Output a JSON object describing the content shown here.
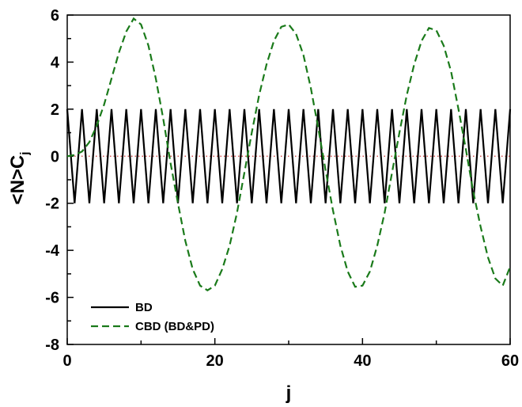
{
  "chart_data": {
    "type": "line",
    "xlabel": "j",
    "ylabel": {
      "main": "<N>C",
      "sub": "j"
    },
    "xlim": [
      0,
      60
    ],
    "ylim": [
      -8,
      6
    ],
    "xticks": [
      0,
      20,
      40,
      60
    ],
    "yticks": [
      -8,
      -6,
      -4,
      -2,
      0,
      2,
      4,
      6
    ],
    "grid": false,
    "legend_position": "bottom-left",
    "reference_line": {
      "y": 0,
      "color": "#cc3333",
      "style": "dotted"
    },
    "series": [
      {
        "name": "BD",
        "color": "#000000",
        "style": "solid",
        "x": [
          0,
          1,
          2,
          3,
          4,
          5,
          6,
          7,
          8,
          9,
          10,
          11,
          12,
          13,
          14,
          15,
          16,
          17,
          18,
          19,
          20,
          21,
          22,
          23,
          24,
          25,
          26,
          27,
          28,
          29,
          30,
          31,
          32,
          33,
          34,
          35,
          36,
          37,
          38,
          39,
          40,
          41,
          42,
          43,
          44,
          45,
          46,
          47,
          48,
          49,
          50,
          51,
          52,
          53,
          54,
          55,
          56,
          57,
          58,
          59,
          60
        ],
        "y": [
          2,
          -2,
          2,
          -2,
          2,
          -2,
          2,
          -2,
          2,
          -2,
          2,
          -2,
          2,
          -2,
          2,
          -2,
          2,
          -2,
          2,
          -2,
          2,
          -2,
          2,
          -2,
          2,
          -2,
          2,
          -2,
          2,
          -2,
          2,
          -2,
          2,
          -2,
          2,
          -2,
          2,
          -2,
          2,
          -2,
          2,
          -2,
          2,
          -2,
          2,
          -2,
          2,
          -2,
          2,
          -2,
          2,
          -2,
          2,
          -2,
          2,
          -2,
          2,
          -2,
          2,
          -2,
          2
        ]
      },
      {
        "name": "CBD (BD&PD)",
        "color": "#1a7a1a",
        "style": "dashed",
        "x": [
          0,
          1,
          2,
          3,
          4,
          5,
          6,
          7,
          8,
          9,
          10,
          11,
          12,
          13,
          14,
          15,
          16,
          17,
          18,
          19,
          20,
          21,
          22,
          23,
          24,
          25,
          26,
          27,
          28,
          29,
          30,
          31,
          32,
          33,
          34,
          35,
          36,
          37,
          38,
          39,
          40,
          41,
          42,
          43,
          44,
          45,
          46,
          47,
          48,
          49,
          50,
          51,
          52,
          53,
          54,
          55,
          56,
          57,
          58,
          59,
          60
        ],
        "y": [
          0,
          0.05,
          0.2,
          0.6,
          1.3,
          2.2,
          3.3,
          4.4,
          5.3,
          5.85,
          5.6,
          4.7,
          3.3,
          1.6,
          -0.3,
          -2.0,
          -3.6,
          -4.8,
          -5.5,
          -5.7,
          -5.5,
          -4.8,
          -3.8,
          -2.4,
          -0.7,
          1.0,
          2.6,
          3.9,
          4.9,
          5.5,
          5.6,
          5.2,
          4.3,
          2.9,
          1.2,
          -0.6,
          -2.3,
          -3.8,
          -4.9,
          -5.55,
          -5.5,
          -4.9,
          -3.8,
          -2.4,
          -0.7,
          1.0,
          2.6,
          3.9,
          4.9,
          5.45,
          5.35,
          4.7,
          3.6,
          2.0,
          0.3,
          -1.5,
          -3.0,
          -4.3,
          -5.2,
          -5.5,
          -4.7
        ]
      }
    ]
  }
}
